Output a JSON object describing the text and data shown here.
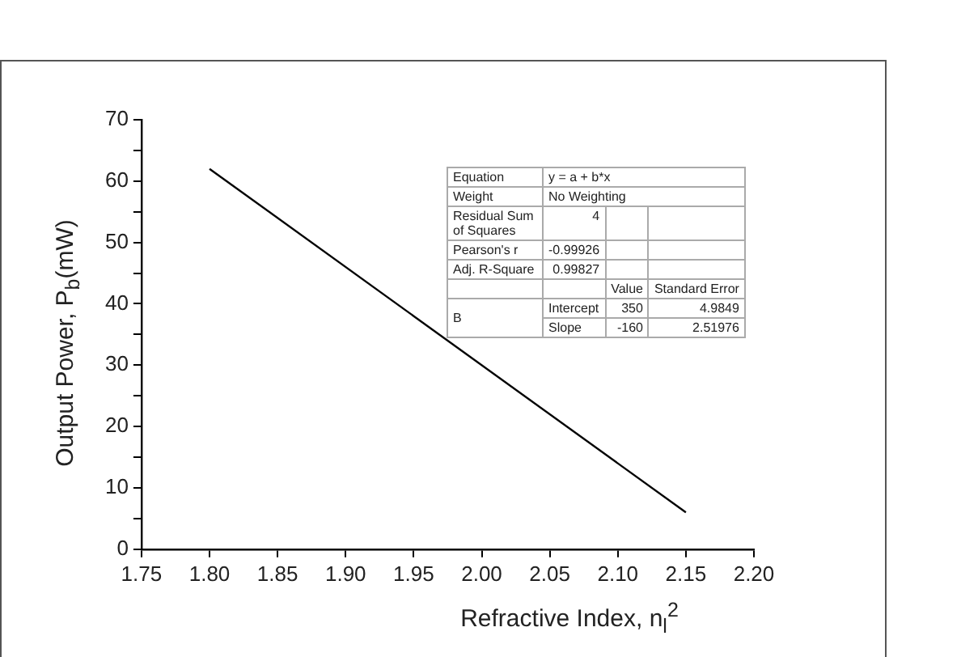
{
  "chart_data": {
    "type": "line",
    "xlabel": "Refractive Index, n$_{l}$$^{2}$",
    "ylabel": "Output Power, P$_{b}$(mW)",
    "x": [
      1.8,
      2.15
    ],
    "series": [
      {
        "color": "#000000",
        "values": [
          62,
          6
        ]
      }
    ],
    "xlim": [
      1.75,
      2.2
    ],
    "xticks": [
      {
        "value": 1.75,
        "label": "1.75"
      },
      {
        "value": 1.8,
        "label": "1.80"
      },
      {
        "value": 1.85,
        "label": "1.85"
      },
      {
        "value": 1.9,
        "label": "1.90"
      },
      {
        "value": 1.95,
        "label": "1.95"
      },
      {
        "value": 2.0,
        "label": "2.00"
      },
      {
        "value": 2.05,
        "label": "2.05"
      },
      {
        "value": 2.1,
        "label": "2.10"
      },
      {
        "value": 2.15,
        "label": "2.15"
      },
      {
        "value": 2.2,
        "label": "2.20"
      }
    ],
    "ylim": [
      0,
      70
    ],
    "yticks": [
      0,
      {
        "value": 5,
        "label": null
      },
      10,
      {
        "value": 15,
        "label": null
      },
      20,
      {
        "value": 25,
        "label": null
      },
      30,
      {
        "value": 35,
        "label": null
      },
      40,
      {
        "value": 45,
        "label": null
      },
      50,
      {
        "value": 55,
        "label": null
      },
      60,
      {
        "value": 65,
        "label": null
      },
      70
    ],
    "grid": false,
    "legend": false,
    "marker": "none",
    "line_style": "solid",
    "annotations": [
      "Equation",
      "y = a + b*x",
      "Weight",
      "No Weighting",
      "Residual Sum of Squares",
      "4",
      "Pearson's r",
      "-0.99926",
      "Adj. R-Square",
      "0.99827",
      "Value",
      "Standard Error",
      "B",
      "Intercept",
      "350",
      "4.9849",
      "Slope",
      "-160",
      "2.51976"
    ]
  }
}
